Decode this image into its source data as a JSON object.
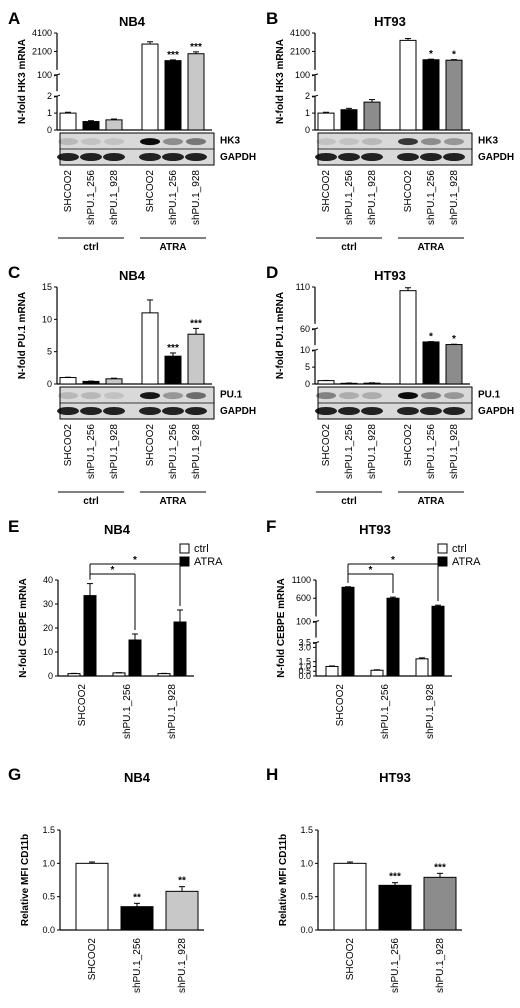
{
  "panel_letters": [
    "A",
    "B",
    "C",
    "D",
    "E",
    "F",
    "G",
    "H"
  ],
  "blot_labels": {
    "A": [
      "HK3",
      "GAPDH"
    ],
    "B": [
      "HK3",
      "GAPDH"
    ],
    "C": [
      "PU.1",
      "GAPDH"
    ],
    "D": [
      "PU.1",
      "GAPDH"
    ]
  },
  "colors": {
    "SHCOO2": "#ffffff",
    "shPU.1_256": "#000000",
    "shPU.1_928_gray": "#c8c8c8",
    "shPU.1_928_darkgray": "#8c8c8c"
  },
  "chart_data": [
    {
      "panel": "A",
      "type": "bar",
      "title": "NB4",
      "ylabel": "N-fold HK3 mRNA",
      "categories": [
        "SHCOO2",
        "shPU.1_256",
        "shPU.1_928",
        "SHCOO2",
        "shPU.1_256",
        "shPU.1_928"
      ],
      "groups": [
        {
          "label": "ctrl",
          "span": [
            0,
            2
          ]
        },
        {
          "label": "ATRA",
          "span": [
            3,
            5
          ]
        }
      ],
      "y_segments": [
        {
          "range": [
            0,
            2
          ],
          "ticks": [
            "0",
            "1",
            "2"
          ]
        },
        {
          "range": [
            2,
            100
          ],
          "ticks": [
            "100"
          ]
        },
        {
          "range": [
            100,
            4100
          ],
          "ticks": [
            "2100",
            "4100"
          ]
        }
      ],
      "values": [
        1.0,
        0.5,
        0.6,
        2900,
        1100,
        1850
      ],
      "errors": [
        0.05,
        0.05,
        0.05,
        250,
        80,
        200
      ],
      "significance": [
        "",
        "",
        "",
        "",
        "***",
        "***"
      ]
    },
    {
      "panel": "B",
      "type": "bar",
      "title": "HT93",
      "ylabel": "N-fold HK3 mRNA",
      "categories": [
        "SHCOO2",
        "shPU.1_256",
        "shPU.1_928",
        "SHCOO2",
        "shPU.1_256",
        "shPU.1_928"
      ],
      "groups": [
        {
          "label": "ctrl",
          "span": [
            0,
            2
          ]
        },
        {
          "label": "ATRA",
          "span": [
            3,
            5
          ]
        }
      ],
      "y_segments": [
        {
          "range": [
            0,
            2
          ],
          "ticks": [
            "0",
            "1",
            "2"
          ]
        },
        {
          "range": [
            2,
            100
          ],
          "ticks": [
            "100"
          ]
        },
        {
          "range": [
            100,
            4100
          ],
          "ticks": [
            "2100",
            "4100"
          ]
        }
      ],
      "values": [
        1.0,
        1.2,
        1.65,
        3300,
        1200,
        1150
      ],
      "errors": [
        0.05,
        0.08,
        0.15,
        200,
        60,
        60
      ],
      "significance": [
        "",
        "",
        "",
        "",
        "*",
        "*"
      ]
    },
    {
      "panel": "C",
      "type": "bar",
      "title": "NB4",
      "ylabel": "N-fold PU.1 mRNA",
      "categories": [
        "SHCOO2",
        "shPU.1_256",
        "shPU.1_928",
        "SHCOO2",
        "shPU.1_256",
        "shPU.1_928"
      ],
      "groups": [
        {
          "label": "ctrl",
          "span": [
            0,
            2
          ]
        },
        {
          "label": "ATRA",
          "span": [
            3,
            5
          ]
        }
      ],
      "ylim": [
        0,
        15
      ],
      "yticks": [
        "0",
        "5",
        "10",
        "15"
      ],
      "values": [
        1.0,
        0.4,
        0.8,
        11.0,
        4.3,
        7.7
      ],
      "errors": [
        0.05,
        0.05,
        0.1,
        2.0,
        0.5,
        0.9
      ],
      "significance": [
        "",
        "",
        "",
        "",
        "***",
        "***"
      ]
    },
    {
      "panel": "D",
      "type": "bar",
      "title": "HT93",
      "ylabel": "N-fold PU.1 mRNA",
      "categories": [
        "SHCOO2",
        "shPU.1_256",
        "shPU.1_928",
        "SHCOO2",
        "shPU.1_256",
        "shPU.1_928"
      ],
      "groups": [
        {
          "label": "ctrl",
          "span": [
            0,
            2
          ]
        },
        {
          "label": "ATRA",
          "span": [
            3,
            5
          ]
        }
      ],
      "y_segments": [
        {
          "range": [
            0,
            10
          ],
          "ticks": [
            "0",
            "5",
            "10"
          ]
        },
        {
          "range": [
            10,
            60
          ],
          "ticks": [
            "60"
          ]
        },
        {
          "range": [
            60,
            110
          ],
          "ticks": [
            "110"
          ]
        }
      ],
      "values": [
        1.0,
        0.2,
        0.25,
        105,
        20,
        12
      ],
      "errors": [
        0.05,
        0.1,
        0.1,
        4,
        1,
        1
      ],
      "significance": [
        "",
        "",
        "",
        "",
        "*",
        "*"
      ]
    },
    {
      "panel": "E",
      "type": "bar",
      "title": "NB4",
      "ylabel": "N-fold CEBPE mRNA",
      "categories": [
        "SHCOO2",
        "shPU.1_256",
        "shPU.1_928"
      ],
      "legend": [
        "ctrl",
        "ATRA"
      ],
      "ylim": [
        0,
        40
      ],
      "yticks": [
        "0",
        "10",
        "20",
        "30",
        "40"
      ],
      "series": [
        {
          "name": "ctrl",
          "values": [
            1.0,
            1.3,
            1.0
          ],
          "errors": [
            0.1,
            0.1,
            0.1
          ]
        },
        {
          "name": "ATRA",
          "values": [
            33.5,
            15,
            22.5
          ],
          "errors": [
            5,
            2.5,
            5
          ]
        }
      ],
      "brackets": [
        {
          "from": 0,
          "to": 1,
          "label": "*"
        },
        {
          "from": 0,
          "to": 2,
          "label": "*"
        }
      ]
    },
    {
      "panel": "F",
      "type": "bar",
      "title": "HT93",
      "ylabel": "N-fold CEBPE mRNA",
      "categories": [
        "SHCOO2",
        "shPU.1_256",
        "shPU.1_928"
      ],
      "legend": [
        "ctrl",
        "ATRA"
      ],
      "y_segments": [
        {
          "range": [
            0,
            3.5
          ],
          "ticks": [
            "0.0",
            "0.5",
            "1.0",
            "1.5",
            "3.0",
            "3.5"
          ]
        },
        {
          "range": [
            3.5,
            100
          ],
          "ticks": [
            "100"
          ]
        },
        {
          "range": [
            100,
            1100
          ],
          "ticks": [
            "600",
            "1100"
          ]
        }
      ],
      "series": [
        {
          "name": "ctrl",
          "values": [
            1.0,
            0.6,
            1.8
          ],
          "errors": [
            0.05,
            0.05,
            0.1
          ]
        },
        {
          "name": "ATRA",
          "values": [
            900,
            600,
            380
          ],
          "errors": [
            15,
            30,
            30
          ]
        }
      ],
      "brackets": [
        {
          "from": 0,
          "to": 1,
          "label": "*"
        },
        {
          "from": 0,
          "to": 2,
          "label": "*"
        }
      ]
    },
    {
      "panel": "G",
      "type": "bar",
      "title": "NB4",
      "ylabel": "Relative MFI CD11b",
      "categories": [
        "SHCOO2",
        "shPU.1_256",
        "shPU.1_928"
      ],
      "ylim": [
        0,
        1.5
      ],
      "yticks": [
        "0.0",
        "0.5",
        "1.0",
        "1.5"
      ],
      "values": [
        1.0,
        0.35,
        0.58
      ],
      "errors": [
        0.02,
        0.05,
        0.07
      ],
      "significance": [
        "",
        "**",
        "**"
      ]
    },
    {
      "panel": "H",
      "type": "bar",
      "title": "HT93",
      "ylabel": "Relative MFI CD11b",
      "categories": [
        "SHCOO2",
        "shPU.1_256",
        "shPU.1_928"
      ],
      "ylim": [
        0,
        1.5
      ],
      "yticks": [
        "0.0",
        "0.5",
        "1.0",
        "1.5"
      ],
      "values": [
        1.0,
        0.67,
        0.79
      ],
      "errors": [
        0.02,
        0.04,
        0.06
      ],
      "significance": [
        "",
        "***",
        "***"
      ]
    }
  ]
}
